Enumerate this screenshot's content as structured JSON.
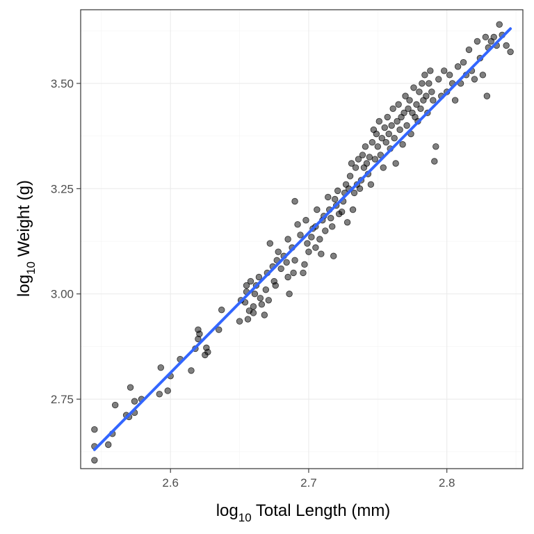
{
  "chart_data": {
    "type": "scatter",
    "xlabel": {
      "prefix": "log",
      "sub": "10",
      "suffix": " Total Length (mm)"
    },
    "ylabel": {
      "prefix": "log",
      "sub": "10",
      "suffix": " Weight (g)"
    },
    "xlim": [
      2.535,
      2.855
    ],
    "ylim": [
      2.585,
      3.675
    ],
    "x_ticks": [
      2.6,
      2.7,
      2.8
    ],
    "x_tick_labels": [
      "2.6",
      "2.7",
      "2.8"
    ],
    "y_ticks": [
      2.75,
      3.0,
      3.25,
      3.5
    ],
    "y_tick_labels": [
      "2.75",
      "3.00",
      "3.25",
      "3.50"
    ],
    "grid": true,
    "legend": "none",
    "fit_line": {
      "x": [
        2.545,
        2.846
      ],
      "y": [
        2.63,
        3.63
      ],
      "color": "#3366ff"
    },
    "point_color": "#000000",
    "points": [
      [
        2.545,
        2.605
      ],
      [
        2.545,
        2.638
      ],
      [
        2.545,
        2.678
      ],
      [
        2.555,
        2.642
      ],
      [
        2.558,
        2.668
      ],
      [
        2.56,
        2.736
      ],
      [
        2.568,
        2.712
      ],
      [
        2.57,
        2.708
      ],
      [
        2.571,
        2.778
      ],
      [
        2.574,
        2.718
      ],
      [
        2.574,
        2.745
      ],
      [
        2.579,
        2.75
      ],
      [
        2.592,
        2.762
      ],
      [
        2.593,
        2.825
      ],
      [
        2.598,
        2.77
      ],
      [
        2.6,
        2.805
      ],
      [
        2.607,
        2.845
      ],
      [
        2.615,
        2.818
      ],
      [
        2.618,
        2.87
      ],
      [
        2.62,
        2.893
      ],
      [
        2.62,
        2.915
      ],
      [
        2.621,
        2.905
      ],
      [
        2.625,
        2.855
      ],
      [
        2.626,
        2.872
      ],
      [
        2.627,
        2.862
      ],
      [
        2.635,
        2.915
      ],
      [
        2.637,
        2.962
      ],
      [
        2.65,
        2.935
      ],
      [
        2.651,
        2.985
      ],
      [
        2.654,
        2.98
      ],
      [
        2.655,
        3.005
      ],
      [
        2.655,
        3.02
      ],
      [
        2.656,
        2.94
      ],
      [
        2.657,
        2.96
      ],
      [
        2.658,
        3.03
      ],
      [
        2.66,
        2.955
      ],
      [
        2.66,
        2.97
      ],
      [
        2.661,
        3.0
      ],
      [
        2.662,
        3.02
      ],
      [
        2.664,
        3.04
      ],
      [
        2.665,
        2.99
      ],
      [
        2.666,
        2.975
      ],
      [
        2.668,
        2.95
      ],
      [
        2.669,
        3.01
      ],
      [
        2.67,
        3.05
      ],
      [
        2.671,
        2.985
      ],
      [
        2.672,
        3.12
      ],
      [
        2.674,
        3.065
      ],
      [
        2.675,
        3.03
      ],
      [
        2.676,
        3.02
      ],
      [
        2.677,
        3.08
      ],
      [
        2.678,
        3.1
      ],
      [
        2.68,
        3.06
      ],
      [
        2.682,
        3.09
      ],
      [
        2.684,
        3.075
      ],
      [
        2.685,
        3.13
      ],
      [
        2.685,
        3.04
      ],
      [
        2.686,
        3.0
      ],
      [
        2.688,
        3.11
      ],
      [
        2.689,
        3.05
      ],
      [
        2.69,
        3.22
      ],
      [
        2.69,
        3.08
      ],
      [
        2.692,
        3.165
      ],
      [
        2.694,
        3.14
      ],
      [
        2.696,
        3.05
      ],
      [
        2.697,
        3.07
      ],
      [
        2.698,
        3.175
      ],
      [
        2.699,
        3.12
      ],
      [
        2.7,
        3.1
      ],
      [
        2.702,
        3.135
      ],
      [
        2.703,
        3.155
      ],
      [
        2.705,
        3.16
      ],
      [
        2.705,
        3.11
      ],
      [
        2.706,
        3.2
      ],
      [
        2.708,
        3.13
      ],
      [
        2.709,
        3.095
      ],
      [
        2.71,
        3.175
      ],
      [
        2.711,
        3.185
      ],
      [
        2.712,
        3.15
      ],
      [
        2.714,
        3.23
      ],
      [
        2.715,
        3.2
      ],
      [
        2.716,
        3.18
      ],
      [
        2.717,
        3.16
      ],
      [
        2.718,
        3.09
      ],
      [
        2.719,
        3.225
      ],
      [
        2.72,
        3.21
      ],
      [
        2.721,
        3.245
      ],
      [
        2.722,
        3.19
      ],
      [
        2.724,
        3.195
      ],
      [
        2.725,
        3.22
      ],
      [
        2.726,
        3.24
      ],
      [
        2.727,
        3.26
      ],
      [
        2.728,
        3.17
      ],
      [
        2.729,
        3.25
      ],
      [
        2.73,
        3.28
      ],
      [
        2.731,
        3.31
      ],
      [
        2.732,
        3.2
      ],
      [
        2.733,
        3.24
      ],
      [
        2.734,
        3.3
      ],
      [
        2.735,
        3.26
      ],
      [
        2.736,
        3.32
      ],
      [
        2.737,
        3.25
      ],
      [
        2.738,
        3.27
      ],
      [
        2.739,
        3.33
      ],
      [
        2.74,
        3.3
      ],
      [
        2.741,
        3.35
      ],
      [
        2.742,
        3.31
      ],
      [
        2.743,
        3.285
      ],
      [
        2.744,
        3.325
      ],
      [
        2.745,
        3.26
      ],
      [
        2.746,
        3.36
      ],
      [
        2.747,
        3.39
      ],
      [
        2.748,
        3.32
      ],
      [
        2.749,
        3.38
      ],
      [
        2.75,
        3.35
      ],
      [
        2.751,
        3.41
      ],
      [
        2.752,
        3.33
      ],
      [
        2.753,
        3.37
      ],
      [
        2.754,
        3.3
      ],
      [
        2.755,
        3.395
      ],
      [
        2.756,
        3.36
      ],
      [
        2.757,
        3.42
      ],
      [
        2.758,
        3.38
      ],
      [
        2.759,
        3.345
      ],
      [
        2.76,
        3.4
      ],
      [
        2.761,
        3.44
      ],
      [
        2.762,
        3.37
      ],
      [
        2.763,
        3.31
      ],
      [
        2.764,
        3.41
      ],
      [
        2.765,
        3.45
      ],
      [
        2.766,
        3.39
      ],
      [
        2.767,
        3.42
      ],
      [
        2.768,
        3.355
      ],
      [
        2.769,
        3.43
      ],
      [
        2.77,
        3.47
      ],
      [
        2.771,
        3.4
      ],
      [
        2.772,
        3.44
      ],
      [
        2.773,
        3.46
      ],
      [
        2.774,
        3.38
      ],
      [
        2.775,
        3.43
      ],
      [
        2.776,
        3.49
      ],
      [
        2.777,
        3.42
      ],
      [
        2.778,
        3.45
      ],
      [
        2.779,
        3.41
      ],
      [
        2.78,
        3.48
      ],
      [
        2.781,
        3.44
      ],
      [
        2.782,
        3.5
      ],
      [
        2.783,
        3.46
      ],
      [
        2.784,
        3.52
      ],
      [
        2.785,
        3.47
      ],
      [
        2.786,
        3.43
      ],
      [
        2.787,
        3.5
      ],
      [
        2.788,
        3.53
      ],
      [
        2.789,
        3.48
      ],
      [
        2.79,
        3.46
      ],
      [
        2.791,
        3.315
      ],
      [
        2.792,
        3.35
      ],
      [
        2.794,
        3.51
      ],
      [
        2.796,
        3.47
      ],
      [
        2.798,
        3.53
      ],
      [
        2.8,
        3.48
      ],
      [
        2.802,
        3.52
      ],
      [
        2.804,
        3.5
      ],
      [
        2.806,
        3.46
      ],
      [
        2.808,
        3.54
      ],
      [
        2.81,
        3.5
      ],
      [
        2.812,
        3.55
      ],
      [
        2.814,
        3.52
      ],
      [
        2.816,
        3.58
      ],
      [
        2.818,
        3.53
      ],
      [
        2.82,
        3.51
      ],
      [
        2.822,
        3.6
      ],
      [
        2.824,
        3.56
      ],
      [
        2.826,
        3.52
      ],
      [
        2.828,
        3.61
      ],
      [
        2.829,
        3.47
      ],
      [
        2.83,
        3.585
      ],
      [
        2.832,
        3.6
      ],
      [
        2.834,
        3.61
      ],
      [
        2.836,
        3.59
      ],
      [
        2.838,
        3.64
      ],
      [
        2.84,
        3.615
      ],
      [
        2.843,
        3.59
      ],
      [
        2.846,
        3.575
      ]
    ]
  }
}
